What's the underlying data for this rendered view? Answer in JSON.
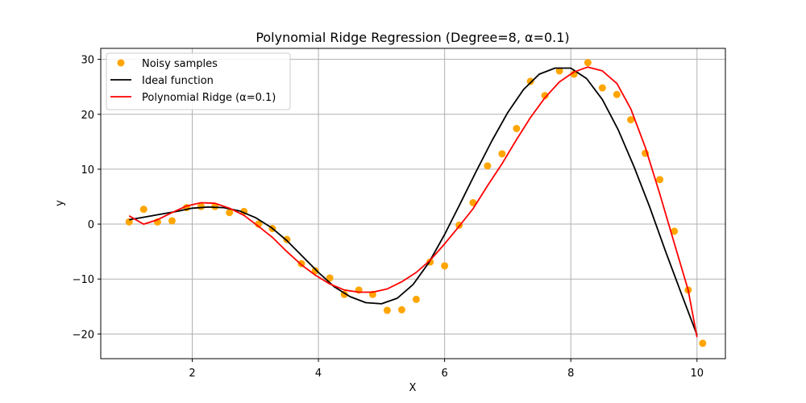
{
  "chart_data": {
    "type": "scatter",
    "title": "Polynomial Ridge Regression (Degree=8, α=0.1)",
    "xlabel": "X",
    "ylabel": "y",
    "xlim": [
      0.55,
      10.45
    ],
    "ylim": [
      -24.5,
      32.0
    ],
    "xticks": [
      2,
      4,
      6,
      8,
      10
    ],
    "yticks": [
      -20,
      -10,
      0,
      10,
      20,
      30
    ],
    "grid": true,
    "legend_position": "top-left",
    "series": [
      {
        "name": "Noisy samples",
        "kind": "scatter",
        "color": "#ffa500",
        "x": [
          1.0,
          1.23,
          1.45,
          1.68,
          1.91,
          2.14,
          2.36,
          2.59,
          2.82,
          3.05,
          3.27,
          3.5,
          3.73,
          3.95,
          4.18,
          4.41,
          4.64,
          4.86,
          5.09,
          5.32,
          5.55,
          5.77,
          6.0,
          6.23,
          6.45,
          6.68,
          6.91,
          7.14,
          7.36,
          7.59,
          7.82,
          8.05,
          8.27,
          8.5,
          8.73,
          8.95,
          9.18,
          9.41,
          9.64,
          9.86,
          10.09
        ],
        "y": [
          0.4,
          2.7,
          0.4,
          0.6,
          3.0,
          3.2,
          3.2,
          2.1,
          2.3,
          0.0,
          -0.8,
          -2.8,
          -7.2,
          -8.5,
          -9.8,
          -12.8,
          -12.0,
          -12.8,
          -15.7,
          -15.6,
          -13.7,
          -6.9,
          -7.6,
          -0.2,
          3.9,
          10.6,
          12.8,
          17.4,
          26.0,
          23.4,
          27.9,
          27.3,
          29.4,
          24.8,
          23.6,
          19.0,
          12.9,
          8.1,
          -1.3,
          -12.0,
          -21.7
        ]
      },
      {
        "name": "Ideal function",
        "kind": "line",
        "color": "#000000",
        "x": [
          1.0,
          1.25,
          1.5,
          1.75,
          2.0,
          2.25,
          2.5,
          2.75,
          3.0,
          3.25,
          3.5,
          3.75,
          4.0,
          4.25,
          4.5,
          4.75,
          5.0,
          5.25,
          5.5,
          5.75,
          6.0,
          6.25,
          6.5,
          6.75,
          7.0,
          7.25,
          7.5,
          7.75,
          8.0,
          8.25,
          8.5,
          8.75,
          9.0,
          9.25,
          9.5,
          9.75,
          10.0
        ],
        "y": [
          0.8,
          1.3,
          1.8,
          2.3,
          2.9,
          3.1,
          3.0,
          2.4,
          1.2,
          -0.6,
          -3.0,
          -5.9,
          -8.8,
          -11.4,
          -13.2,
          -14.3,
          -14.5,
          -13.5,
          -11.0,
          -7.0,
          -1.9,
          3.8,
          9.6,
          15.2,
          20.3,
          24.5,
          27.3,
          28.4,
          28.4,
          26.5,
          22.7,
          17.2,
          10.5,
          3.1,
          -4.9,
          -12.6,
          -20.2
        ]
      },
      {
        "name": "Polynomial Ridge (α=0.1)",
        "kind": "line",
        "color": "#ff0000",
        "x": [
          1.0,
          1.23,
          1.45,
          1.68,
          1.91,
          2.14,
          2.36,
          2.59,
          2.82,
          3.05,
          3.27,
          3.5,
          3.73,
          3.95,
          4.18,
          4.41,
          4.64,
          4.86,
          5.09,
          5.32,
          5.55,
          5.77,
          6.0,
          6.23,
          6.45,
          6.68,
          6.91,
          7.14,
          7.36,
          7.59,
          7.82,
          8.05,
          8.27,
          8.5,
          8.73,
          8.95,
          9.18,
          9.41,
          9.64,
          9.86,
          10.0
        ],
        "y": [
          1.5,
          0.0,
          0.8,
          2.1,
          3.3,
          3.9,
          3.8,
          2.9,
          1.6,
          -0.4,
          -2.4,
          -5.0,
          -7.4,
          -9.3,
          -10.9,
          -12.0,
          -12.4,
          -12.4,
          -11.8,
          -10.5,
          -8.8,
          -6.6,
          -3.6,
          -0.4,
          2.8,
          7.0,
          11.0,
          15.4,
          19.4,
          23.0,
          25.9,
          27.7,
          28.6,
          27.9,
          25.6,
          21.0,
          14.0,
          5.5,
          -3.5,
          -12.0,
          -20.6
        ]
      }
    ]
  }
}
